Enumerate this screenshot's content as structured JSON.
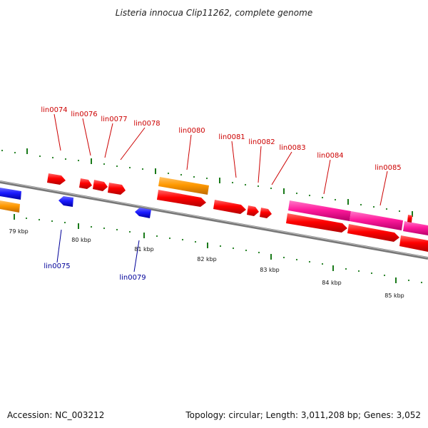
{
  "title": "Listeria innocua Clip11262, complete genome",
  "footer": {
    "accession": "Accession: NC_003212",
    "summary": "Topology: circular; Length: 3,011,208 bp; Genes: 3,052"
  },
  "colors": {
    "forward_label": "#cc0000",
    "reverse_label": "#000099",
    "tick": "#1a7a1a",
    "backbone": "#888888",
    "red": "#ff0000",
    "blue": "#1a1aff",
    "orange": "#ff9900",
    "magenta": "#ff1a9c"
  },
  "scale_labels": [
    "79 kbp",
    "80 kbp",
    "81 kbp",
    "82 kbp",
    "83 kbp",
    "84 kbp",
    "85 kbp"
  ],
  "gene_labels": [
    {
      "name": "lin0074",
      "strand": "forward"
    },
    {
      "name": "lin0075",
      "strand": "reverse"
    },
    {
      "name": "lin0076",
      "strand": "forward"
    },
    {
      "name": "lin0077",
      "strand": "forward"
    },
    {
      "name": "lin0078",
      "strand": "forward"
    },
    {
      "name": "lin0079",
      "strand": "reverse"
    },
    {
      "name": "lin0080",
      "strand": "forward"
    },
    {
      "name": "lin0081",
      "strand": "forward"
    },
    {
      "name": "lin0082",
      "strand": "forward"
    },
    {
      "name": "lin0083",
      "strand": "forward"
    },
    {
      "name": "lin0084",
      "strand": "forward"
    },
    {
      "name": "lin0085",
      "strand": "forward"
    }
  ]
}
